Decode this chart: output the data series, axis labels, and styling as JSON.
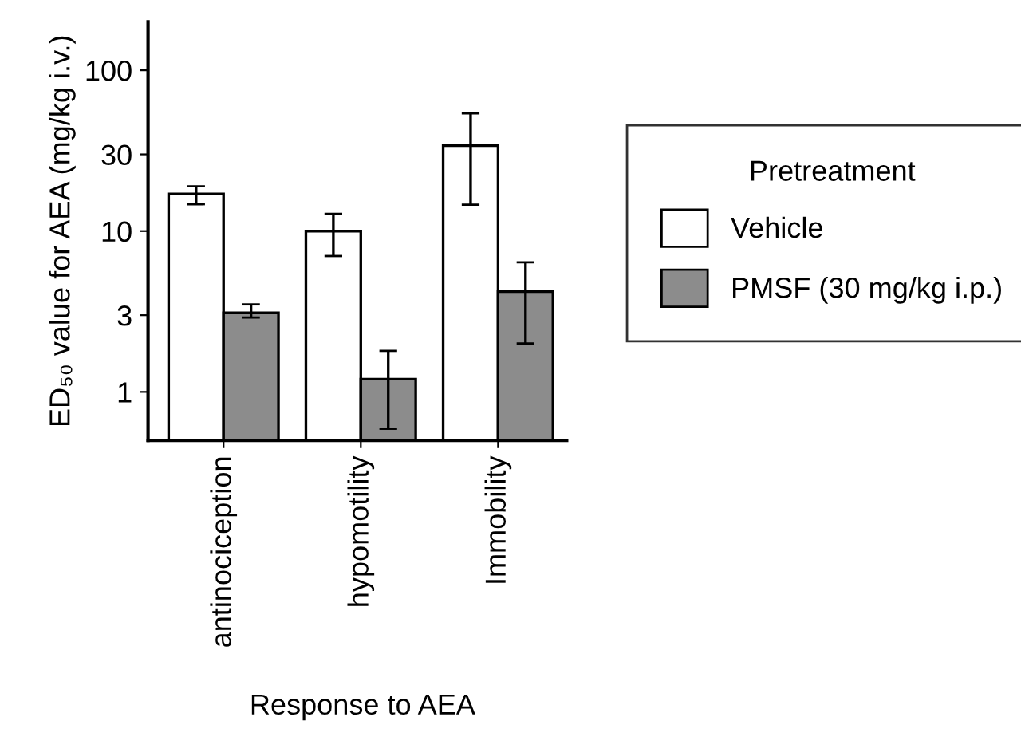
{
  "chart_data": {
    "type": "bar",
    "xlabel": "Response to AEA",
    "ylabel": "ED₅₀ value for AEA (mg/kg i.v.)",
    "legend_title": "Pretreatment",
    "categories": [
      "antinociception",
      "hypomotility",
      "Immobility"
    ],
    "series": [
      {
        "name": "Vehicle",
        "color": "#ffffff",
        "values": [
          17,
          10,
          34
        ],
        "errors": [
          [
            14.7,
            19
          ],
          [
            7,
            12.8
          ],
          [
            14.6,
            54
          ]
        ]
      },
      {
        "name": "PMSF (30 mg/kg i.p.)",
        "color": "#8c8c8c",
        "values": [
          3.1,
          1.2,
          4.2
        ],
        "errors": [
          [
            2.9,
            3.5
          ],
          [
            0.59,
            1.8
          ],
          [
            2,
            6.4
          ]
        ]
      }
    ],
    "log": "y",
    "ylim": [
      0.5,
      200
    ],
    "yticks": [
      1,
      3,
      10,
      30,
      100
    ],
    "grid": false,
    "legend": "right"
  }
}
